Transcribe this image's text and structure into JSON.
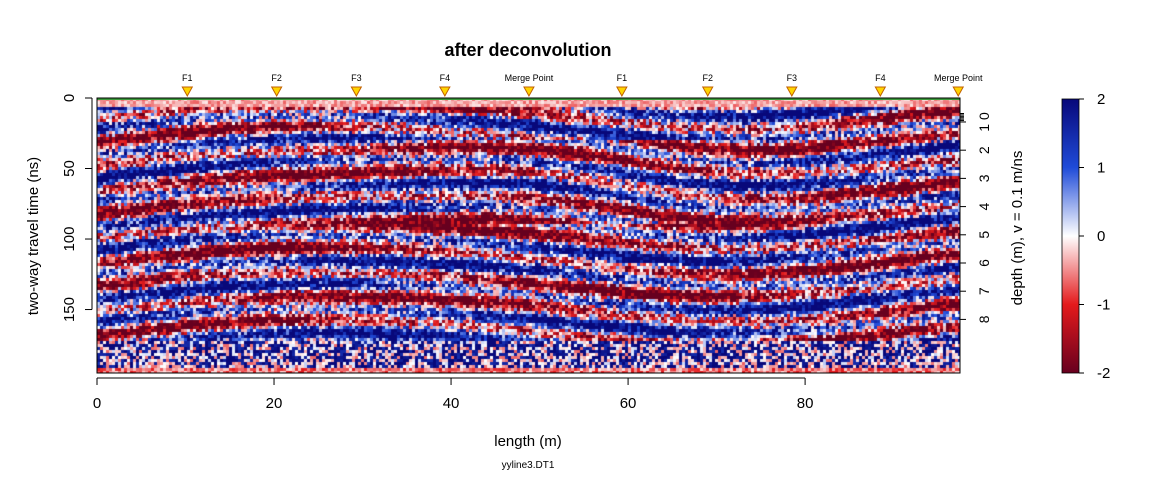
{
  "chart_data": {
    "type": "heatmap",
    "title": "after deconvolution",
    "xlabel": "length (m)",
    "ylabel": "two-way travel time (ns)",
    "y2label": "depth (m),  v = 0.1 m/ns",
    "caption": "yyline3.DT1",
    "xlim": [
      0,
      97.5
    ],
    "ylim": [
      0,
      195
    ],
    "x_ticks": [
      0,
      20,
      40,
      60,
      80
    ],
    "y_ticks": [
      0,
      50,
      100,
      150
    ],
    "depth_ticks": [
      1,
      2,
      3,
      4,
      5,
      6,
      7,
      8
    ],
    "depth_tick_labels": [
      "1 0",
      "2",
      "3",
      "4",
      "5",
      "6",
      "7",
      "8"
    ],
    "colorbar": {
      "range": [
        -2,
        2
      ],
      "ticks": [
        -2,
        -1,
        0,
        1,
        2
      ],
      "tick_labels": [
        "-2",
        "-1",
        "0",
        "1",
        "2"
      ],
      "colors": [
        "#67001f",
        "#e41a1c",
        "#ffffff",
        "#1f4bd8",
        "#08087a"
      ]
    },
    "markers": [
      {
        "label": "F1",
        "x": 10.2
      },
      {
        "label": "F2",
        "x": 20.3
      },
      {
        "label": "F3",
        "x": 29.3
      },
      {
        "label": "F4",
        "x": 39.3
      },
      {
        "label": "Merge Point",
        "x": 48.8
      },
      {
        "label": "F1",
        "x": 59.3
      },
      {
        "label": "F2",
        "x": 69.0
      },
      {
        "label": "F3",
        "x": 78.5
      },
      {
        "label": "F4",
        "x": 88.5
      },
      {
        "label": "Merge Point",
        "x": 97.3
      }
    ],
    "marker_color": "#ffd400",
    "grid": false
  }
}
